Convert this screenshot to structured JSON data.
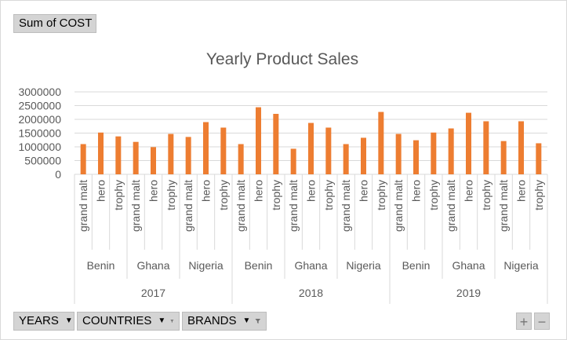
{
  "value_field": "Sum of COST",
  "axis_fields": [
    {
      "label": "YEARS",
      "has_filter": false
    },
    {
      "label": "COUNTRIES",
      "has_filter": true
    },
    {
      "label": "BRANDS",
      "has_filter": true
    }
  ],
  "zoom": {
    "plus": "+",
    "minus": "−"
  },
  "colors": {
    "bar": "#ed7d31",
    "grid": "#d9d9d9",
    "text": "#595959"
  },
  "chart_data": {
    "type": "bar",
    "title": "Yearly Product Sales",
    "ylim": [
      0,
      3000000
    ],
    "yticks": [
      "3000000",
      "2500000",
      "2000000",
      "1500000",
      "1000000",
      "500000",
      "0"
    ],
    "levels": {
      "years": [
        "2017",
        "2018",
        "2019"
      ],
      "countries": [
        "Benin",
        "Ghana",
        "Nigeria"
      ],
      "brands": [
        "grand malt",
        "hero",
        "trophy"
      ]
    },
    "categories": [
      "grand malt",
      "hero",
      "trophy",
      "grand malt",
      "hero",
      "trophy",
      "grand malt",
      "hero",
      "trophy",
      "grand malt",
      "hero",
      "trophy",
      "grand malt",
      "hero",
      "trophy",
      "grand malt",
      "hero",
      "trophy",
      "grand malt",
      "hero",
      "trophy",
      "grand malt",
      "hero",
      "trophy",
      "grand malt",
      "hero",
      "trophy"
    ],
    "series": [
      {
        "values": [
          1100000,
          1520000,
          1380000,
          1180000,
          990000,
          1470000,
          1360000,
          1900000,
          1700000,
          1100000,
          2440000,
          2200000,
          930000,
          1870000,
          1700000,
          1100000,
          1330000,
          2270000,
          1470000,
          1240000,
          1520000,
          1670000,
          2240000,
          1930000,
          1210000,
          1930000,
          1130000
        ]
      }
    ]
  }
}
